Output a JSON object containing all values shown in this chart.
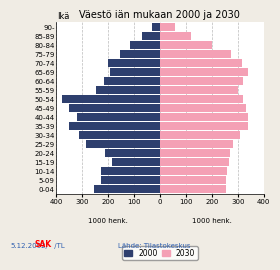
{
  "title": "Väestö iän mukaan 2000 ja 2030",
  "age_groups": [
    "0-04",
    "5-09",
    "10-14",
    "15-19",
    "20-24",
    "25-29",
    "30-34",
    "35-39",
    "40-44",
    "45-49",
    "50-54",
    "55-59",
    "60-64",
    "65-69",
    "70-74",
    "75-79",
    "80-84",
    "85-89",
    "90-"
  ],
  "values_2000": [
    255,
    225,
    225,
    185,
    210,
    285,
    310,
    350,
    320,
    350,
    375,
    245,
    215,
    190,
    200,
    155,
    115,
    70,
    30
  ],
  "values_2030": [
    255,
    255,
    260,
    265,
    270,
    280,
    310,
    340,
    340,
    330,
    320,
    300,
    320,
    340,
    315,
    275,
    200,
    120,
    60
  ],
  "color_2000": "#2e3f6e",
  "color_2030": "#f4a0b5",
  "xlim": 400,
  "xlabel": "1000 henk.",
  "ylabel": "Ikä",
  "legend_2000": "2000",
  "legend_2030": "2030",
  "footer_left_normal": "5.12.2002/",
  "footer_left_bold": "SAK",
  "footer_left_end": " /TL",
  "footer_right": "Lähde: Tilastokeskus",
  "bar_height": 0.82,
  "grid_color": "#bbbbbb",
  "background_color": "#f0ece4",
  "plot_bg_color": "#ffffff"
}
